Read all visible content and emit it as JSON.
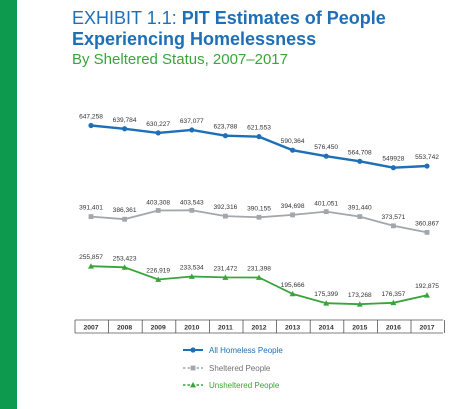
{
  "header": {
    "exhibit": "EXHIBIT 1.1:",
    "title_line1": "PIT Estimates of People",
    "title_line2": "Experiencing Homelessness",
    "subtitle": "By Sheltered Status, 2007–2017"
  },
  "colors": {
    "sidebar": "#0d9a4e",
    "all": "#1d6fb8",
    "sheltered": "#a3a6aa",
    "unsheltered": "#3aa33a",
    "text": "#333333"
  },
  "chart_data": {
    "type": "line",
    "categories": [
      "2007",
      "2008",
      "2009",
      "2010",
      "2011",
      "2012",
      "2013",
      "2014",
      "2015",
      "2016",
      "2017"
    ],
    "series": [
      {
        "name": "All Homeless People",
        "values": [
          647258,
          639784,
          630227,
          637077,
          623788,
          621553,
          590364,
          576450,
          564708,
          549928,
          553742
        ],
        "labels": [
          "647,258",
          "639,784",
          "630,227",
          "637,077",
          "623,788",
          "621,553",
          "590,364",
          "576,450",
          "564,708",
          "549928",
          "553,742"
        ]
      },
      {
        "name": "Sheltered People",
        "values": [
          391401,
          386361,
          403308,
          403543,
          392316,
          390155,
          394698,
          401051,
          391440,
          373571,
          360867
        ],
        "labels": [
          "391,401",
          "386,361",
          "403,308",
          "403,543",
          "392,316",
          "390,155",
          "394,698",
          "401,051",
          "391,440",
          "373,571",
          "360,867"
        ]
      },
      {
        "name": "Unsheltered People",
        "values": [
          255857,
          253423,
          226919,
          233534,
          231472,
          231398,
          195666,
          175399,
          173268,
          176357,
          192875
        ],
        "labels": [
          "255,857",
          "253,423",
          "226,919",
          "233,534",
          "231,472",
          "231,398",
          "195,666",
          "175,399",
          "173,268",
          "176,357",
          "192,875"
        ]
      }
    ],
    "legend_position": "bottom-center",
    "grid": false
  }
}
